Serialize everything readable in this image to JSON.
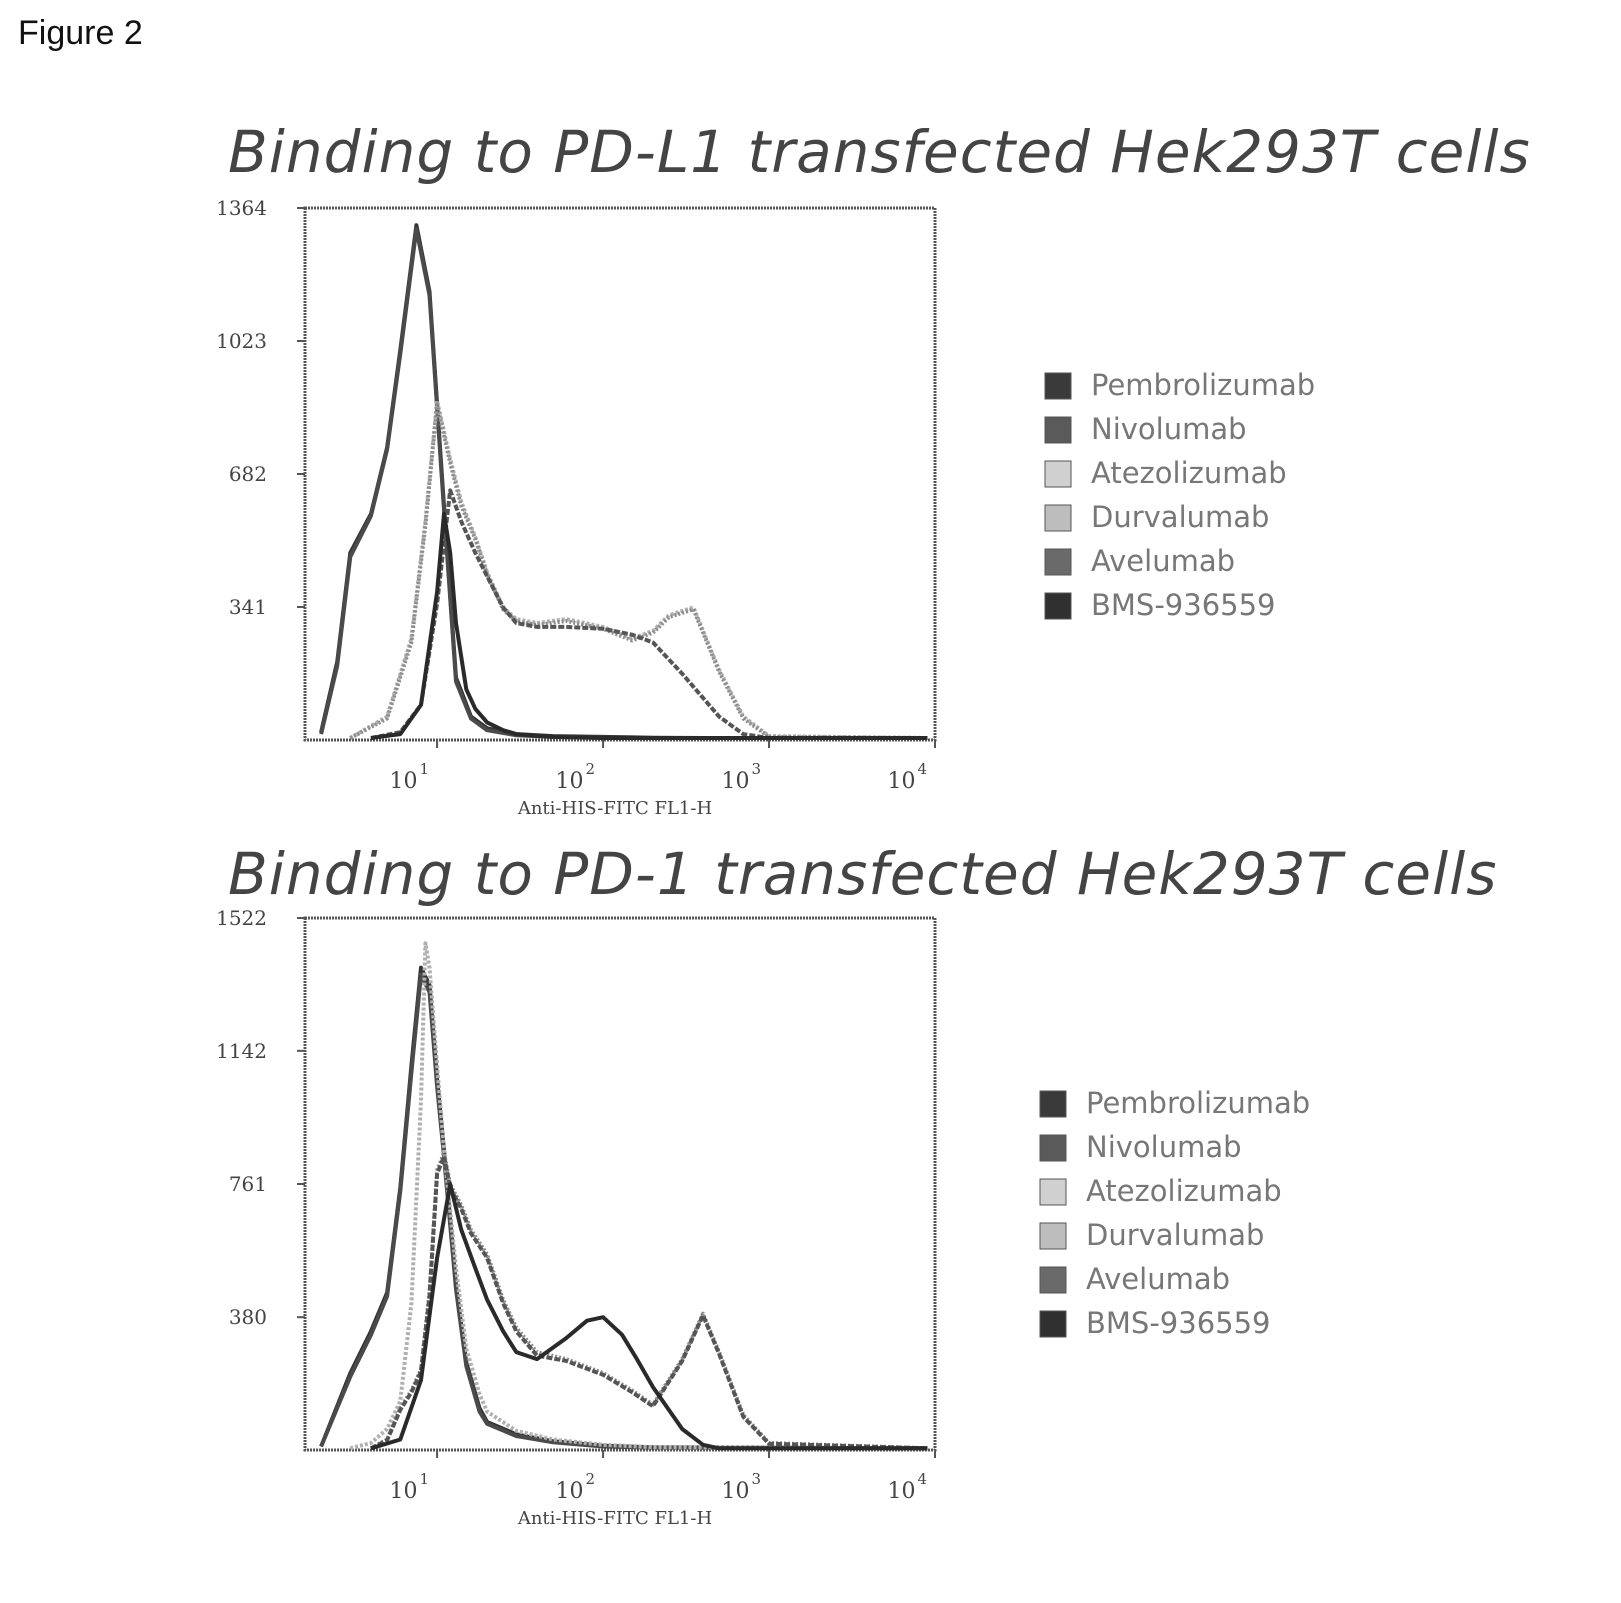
{
  "figure_label": "Figure 2",
  "chart_data": [
    {
      "type": "line",
      "title": "Binding to PD-L1 transfected Hek293T cells",
      "xlabel": "Anti-HIS-FITC FL1-H",
      "ylabel": "",
      "x_scale": "log",
      "xlim": [
        1.6,
        10000
      ],
      "ylim": [
        0,
        1364
      ],
      "yticks": [
        "1364",
        "1023",
        "682",
        "341"
      ],
      "ytick_values": [
        1364,
        1023,
        682,
        341
      ],
      "xticks": [
        {
          "base": "10",
          "exp": "1",
          "value": 10
        },
        {
          "base": "10",
          "exp": "2",
          "value": 100
        },
        {
          "base": "10",
          "exp": "3",
          "value": 1000
        },
        {
          "base": "10",
          "exp": "4",
          "value": 10000
        }
      ],
      "legend": [
        "Pembrolizumab",
        "Nivolumab",
        "Atezolizumab",
        "Durvalumab",
        "Avelumab",
        "BMS-936559"
      ],
      "legend_position": "right",
      "series": [
        {
          "name": "Pembrolizumab",
          "x": [
            2.0,
            2.5,
            3.0,
            4.0,
            5.0,
            6.0,
            7.5,
            9.0,
            11,
            13,
            16,
            20,
            30,
            50,
            100,
            200,
            400,
            800,
            2000,
            9000
          ],
          "y": [
            20,
            200,
            480,
            580,
            750,
            1000,
            1320,
            1150,
            600,
            160,
            60,
            30,
            15,
            10,
            8,
            6,
            5,
            5,
            5,
            5
          ]
        },
        {
          "name": "Nivolumab",
          "x": [
            2.0,
            2.5,
            3.0,
            4.0,
            5.0,
            6.0,
            7.5,
            9.0,
            11,
            13,
            16,
            20,
            30,
            50,
            100,
            200,
            400,
            800,
            2000,
            9000
          ],
          "y": [
            15,
            190,
            470,
            575,
            745,
            990,
            1310,
            1140,
            590,
            150,
            55,
            25,
            12,
            8,
            6,
            5,
            5,
            5,
            5,
            5
          ]
        },
        {
          "name": "Atezolizumab",
          "x": [
            3,
            5,
            7,
            8.5,
            10,
            12,
            14,
            17,
            20,
            25,
            30,
            40,
            60,
            100,
            150,
            200,
            250,
            350,
            500,
            700,
            1000,
            9000
          ],
          "y": [
            5,
            60,
            260,
            560,
            870,
            720,
            610,
            520,
            430,
            340,
            310,
            300,
            310,
            290,
            260,
            280,
            320,
            340,
            180,
            60,
            10,
            5
          ]
        },
        {
          "name": "Durvalumab",
          "x": [
            3,
            5,
            7,
            8.5,
            10,
            12,
            14,
            17,
            20,
            25,
            30,
            40,
            60,
            100,
            150,
            200,
            250,
            350,
            500,
            700,
            1000,
            9000
          ],
          "y": [
            5,
            55,
            250,
            550,
            860,
            710,
            600,
            515,
            425,
            335,
            305,
            295,
            305,
            285,
            255,
            275,
            315,
            335,
            175,
            55,
            8,
            5
          ]
        },
        {
          "name": "Avelumab",
          "x": [
            4,
            6,
            8,
            10,
            12,
            14,
            17,
            20,
            25,
            30,
            40,
            60,
            100,
            150,
            200,
            300,
            500,
            700,
            1000,
            9000
          ],
          "y": [
            5,
            20,
            90,
            350,
            640,
            560,
            480,
            420,
            340,
            300,
            290,
            290,
            285,
            270,
            250,
            170,
            60,
            15,
            5,
            5
          ]
        },
        {
          "name": "BMS-936559",
          "x": [
            4,
            6,
            8,
            10,
            11,
            12,
            13,
            15,
            17,
            20,
            25,
            30,
            50,
            100,
            200,
            500,
            9000
          ],
          "y": [
            5,
            15,
            90,
            380,
            580,
            480,
            300,
            130,
            80,
            45,
            25,
            15,
            8,
            5,
            5,
            5,
            5
          ]
        }
      ]
    },
    {
      "type": "line",
      "title": "Binding to PD-1 transfected Hek293T cells",
      "xlabel": "Anti-HIS-FITC FL1-H",
      "ylabel": "",
      "x_scale": "log",
      "xlim": [
        1.6,
        10000
      ],
      "ylim": [
        0,
        1522
      ],
      "yticks": [
        "1522",
        "1142",
        "761",
        "380"
      ],
      "ytick_values": [
        1522,
        1142,
        761,
        380
      ],
      "xticks": [
        {
          "base": "10",
          "exp": "1",
          "value": 10
        },
        {
          "base": "10",
          "exp": "2",
          "value": 100
        },
        {
          "base": "10",
          "exp": "3",
          "value": 1000
        },
        {
          "base": "10",
          "exp": "4",
          "value": 10000
        }
      ],
      "legend": [
        "Pembrolizumab",
        "Nivolumab",
        "Atezolizumab",
        "Durvalumab",
        "Avelumab",
        "BMS-936559"
      ],
      "legend_position": "right",
      "series": [
        {
          "name": "Pembrolizumab",
          "x": [
            2,
            3,
            4,
            5,
            6,
            7,
            8,
            9,
            10,
            11,
            13,
            15,
            18,
            20,
            30,
            50,
            100,
            200,
            9000
          ],
          "y": [
            10,
            220,
            340,
            450,
            750,
            1100,
            1380,
            1330,
            1060,
            860,
            470,
            250,
            120,
            80,
            45,
            25,
            12,
            8,
            5
          ]
        },
        {
          "name": "Nivolumab",
          "x": [
            2,
            3,
            4,
            5,
            6,
            7,
            8,
            9,
            10,
            11,
            13,
            15,
            18,
            20,
            30,
            50,
            100,
            200,
            9000
          ],
          "y": [
            10,
            210,
            330,
            440,
            740,
            1080,
            1360,
            1310,
            1040,
            840,
            460,
            240,
            110,
            75,
            40,
            22,
            10,
            7,
            5
          ]
        },
        {
          "name": "Atezolizumab",
          "x": [
            3,
            4,
            5,
            6,
            7,
            8,
            8.5,
            9,
            10,
            11,
            13,
            15,
            18,
            20,
            30,
            50,
            100,
            200,
            9000
          ],
          "y": [
            5,
            20,
            60,
            140,
            420,
            1000,
            1450,
            1380,
            1100,
            860,
            520,
            290,
            160,
            110,
            55,
            30,
            15,
            8,
            5
          ]
        },
        {
          "name": "Durvalumab",
          "x": [
            4,
            5,
            6,
            7,
            8,
            9,
            10,
            11,
            12,
            14,
            16,
            20,
            25,
            30,
            40,
            60,
            100,
            150,
            200,
            300,
            400,
            500,
            700,
            1000,
            9000
          ],
          "y": [
            5,
            30,
            120,
            170,
            230,
            450,
            800,
            850,
            760,
            700,
            630,
            560,
            430,
            350,
            280,
            260,
            220,
            170,
            130,
            260,
            390,
            280,
            100,
            20,
            5
          ]
        },
        {
          "name": "Avelumab",
          "x": [
            4,
            5,
            6,
            7,
            8,
            9,
            10,
            11,
            12,
            14,
            16,
            20,
            25,
            30,
            40,
            60,
            100,
            150,
            200,
            300,
            400,
            500,
            700,
            1000,
            9000
          ],
          "y": [
            5,
            28,
            115,
            165,
            225,
            440,
            790,
            840,
            750,
            690,
            620,
            550,
            420,
            340,
            270,
            255,
            215,
            165,
            125,
            255,
            385,
            275,
            95,
            18,
            5
          ]
        },
        {
          "name": "BMS-936559",
          "x": [
            4,
            6,
            8,
            10,
            12,
            14,
            17,
            20,
            25,
            30,
            40,
            60,
            80,
            100,
            130,
            160,
            200,
            300,
            400,
            500,
            9000
          ],
          "y": [
            5,
            30,
            200,
            550,
            760,
            630,
            520,
            430,
            340,
            280,
            260,
            320,
            370,
            380,
            330,
            260,
            180,
            60,
            15,
            5,
            5
          ]
        }
      ]
    }
  ]
}
